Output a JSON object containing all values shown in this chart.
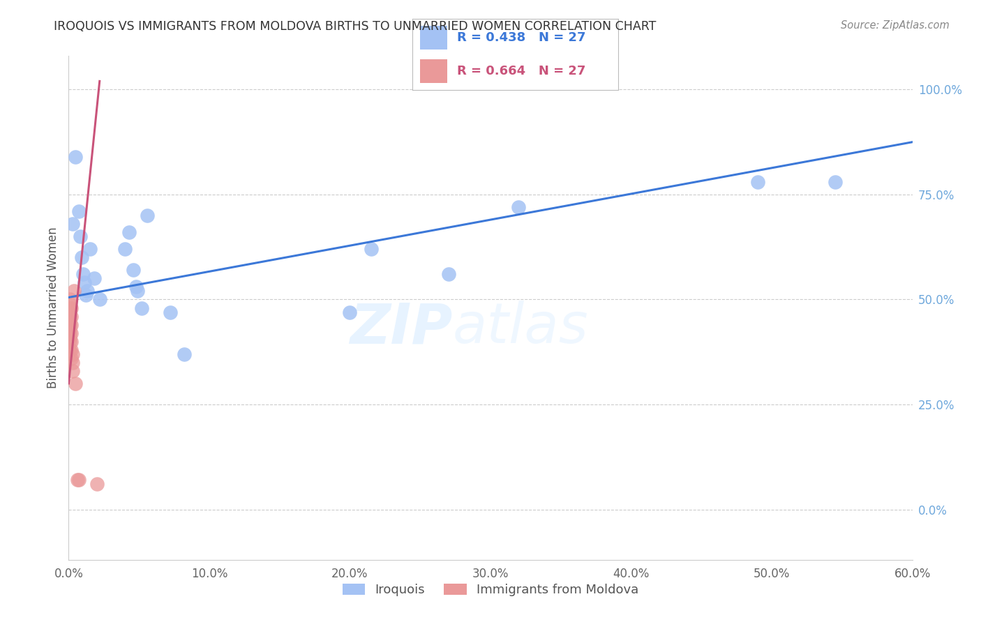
{
  "title": "IROQUOIS VS IMMIGRANTS FROM MOLDOVA BIRTHS TO UNMARRIED WOMEN CORRELATION CHART",
  "source": "Source: ZipAtlas.com",
  "ylabel": "Births to Unmarried Women",
  "watermark_zip": "ZIP",
  "watermark_atlas": "atlas",
  "legend_blue_label": "Iroquois",
  "legend_pink_label": "Immigrants from Moldova",
  "xlim": [
    0.0,
    0.6
  ],
  "ylim": [
    -0.12,
    1.08
  ],
  "yticks": [
    0.0,
    0.25,
    0.5,
    0.75,
    1.0
  ],
  "ytick_labels": [
    "0.0%",
    "25.0%",
    "50.0%",
    "75.0%",
    "100.0%"
  ],
  "xticks": [
    0.0,
    0.1,
    0.2,
    0.3,
    0.4,
    0.5,
    0.6
  ],
  "xtick_labels": [
    "0.0%",
    "10.0%",
    "20.0%",
    "30.0%",
    "40.0%",
    "50.0%",
    "60.0%"
  ],
  "blue_scatter_color": "#a4c2f4",
  "pink_scatter_color": "#ea9999",
  "blue_line_color": "#3c78d8",
  "pink_line_color": "#c9537a",
  "background_color": "#ffffff",
  "grid_color": "#cccccc",
  "axis_color": "#cccccc",
  "title_color": "#333333",
  "right_axis_color": "#6fa8dc",
  "iroquois_x": [
    0.003,
    0.005,
    0.007,
    0.008,
    0.009,
    0.01,
    0.011,
    0.012,
    0.013,
    0.015,
    0.018,
    0.022,
    0.04,
    0.043,
    0.046,
    0.048,
    0.049,
    0.052,
    0.056,
    0.072,
    0.082,
    0.2,
    0.215,
    0.32,
    0.49,
    0.545,
    0.27
  ],
  "iroquois_y": [
    0.68,
    0.84,
    0.71,
    0.65,
    0.6,
    0.56,
    0.54,
    0.51,
    0.52,
    0.62,
    0.55,
    0.5,
    0.62,
    0.66,
    0.57,
    0.53,
    0.52,
    0.48,
    0.7,
    0.47,
    0.37,
    0.47,
    0.62,
    0.72,
    0.78,
    0.78,
    0.56
  ],
  "moldova_x": [
    0.001,
    0.001,
    0.001,
    0.001,
    0.001,
    0.001,
    0.001,
    0.001,
    0.001,
    0.001,
    0.001,
    0.001,
    0.002,
    0.002,
    0.002,
    0.002,
    0.002,
    0.002,
    0.002,
    0.003,
    0.003,
    0.003,
    0.004,
    0.005,
    0.006,
    0.007,
    0.02
  ],
  "moldova_y": [
    0.38,
    0.4,
    0.41,
    0.42,
    0.43,
    0.44,
    0.45,
    0.46,
    0.47,
    0.48,
    0.49,
    0.5,
    0.36,
    0.38,
    0.4,
    0.42,
    0.44,
    0.46,
    0.48,
    0.33,
    0.35,
    0.37,
    0.52,
    0.3,
    0.07,
    0.07,
    0.06
  ],
  "blue_line_x": [
    0.0,
    0.6
  ],
  "blue_line_y": [
    0.505,
    0.875
  ],
  "pink_line_x": [
    0.0,
    0.022
  ],
  "pink_line_y": [
    0.3,
    1.02
  ],
  "legend_box_color": "#f3f3f3",
  "legend_box_border": "#cccccc"
}
